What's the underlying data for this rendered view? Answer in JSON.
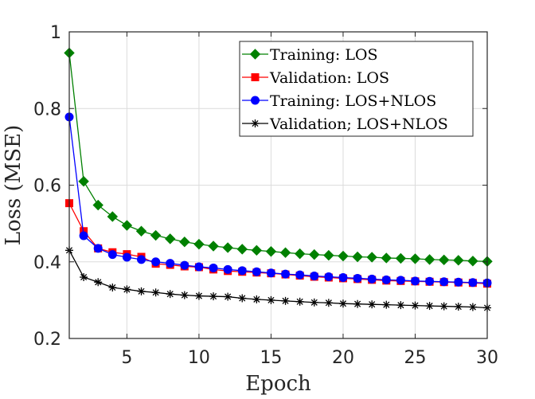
{
  "chart_data": {
    "type": "line",
    "title": "",
    "xlabel": "Epoch",
    "ylabel": "Loss (MSE)",
    "xlim": [
      1,
      30
    ],
    "ylim": [
      0.2,
      1.0
    ],
    "xticks": [
      5,
      10,
      15,
      20,
      25,
      30
    ],
    "yticks": [
      0.2,
      0.4,
      0.6,
      0.8,
      1.0
    ],
    "xtick_labels": [
      "5",
      "10",
      "15",
      "20",
      "25",
      "30"
    ],
    "ytick_labels": [
      "0.2",
      "0.4",
      "0.6",
      "0.8",
      "1"
    ],
    "grid": true,
    "legend_position": "top-right",
    "x": [
      1,
      2,
      3,
      4,
      5,
      6,
      7,
      8,
      9,
      10,
      11,
      12,
      13,
      14,
      15,
      16,
      17,
      18,
      19,
      20,
      21,
      22,
      23,
      24,
      25,
      26,
      27,
      28,
      29,
      30
    ],
    "series": [
      {
        "name": "Training: LOS",
        "color": "#008000",
        "marker": "diamond",
        "values": [
          0.945,
          0.61,
          0.548,
          0.518,
          0.495,
          0.48,
          0.469,
          0.46,
          0.452,
          0.446,
          0.441,
          0.437,
          0.433,
          0.43,
          0.427,
          0.424,
          0.421,
          0.419,
          0.417,
          0.415,
          0.413,
          0.412,
          0.41,
          0.409,
          0.408,
          0.406,
          0.405,
          0.404,
          0.402,
          0.401
        ]
      },
      {
        "name": "Validation:  LOS",
        "color": "#ff0000",
        "marker": "square",
        "values": [
          0.553,
          0.48,
          0.435,
          0.425,
          0.42,
          0.413,
          0.395,
          0.392,
          0.388,
          0.386,
          0.38,
          0.376,
          0.374,
          0.372,
          0.37,
          0.367,
          0.364,
          0.361,
          0.359,
          0.357,
          0.355,
          0.353,
          0.351,
          0.35,
          0.349,
          0.348,
          0.347,
          0.346,
          0.345,
          0.343
        ]
      },
      {
        "name": "Training:  LOS+NLOS",
        "color": "#0000ff",
        "marker": "circle",
        "values": [
          0.778,
          0.468,
          0.435,
          0.419,
          0.412,
          0.406,
          0.4,
          0.396,
          0.391,
          0.387,
          0.384,
          0.38,
          0.377,
          0.374,
          0.371,
          0.368,
          0.366,
          0.363,
          0.361,
          0.359,
          0.357,
          0.355,
          0.353,
          0.352,
          0.35,
          0.349,
          0.348,
          0.347,
          0.346,
          0.345
        ]
      },
      {
        "name": "Validation; LOS+NLOS",
        "color": "#000000",
        "marker": "asterisk",
        "values": [
          0.43,
          0.36,
          0.347,
          0.333,
          0.328,
          0.323,
          0.32,
          0.316,
          0.313,
          0.311,
          0.31,
          0.309,
          0.305,
          0.302,
          0.3,
          0.298,
          0.296,
          0.294,
          0.293,
          0.291,
          0.29,
          0.289,
          0.288,
          0.287,
          0.286,
          0.285,
          0.284,
          0.283,
          0.282,
          0.28
        ]
      }
    ]
  }
}
